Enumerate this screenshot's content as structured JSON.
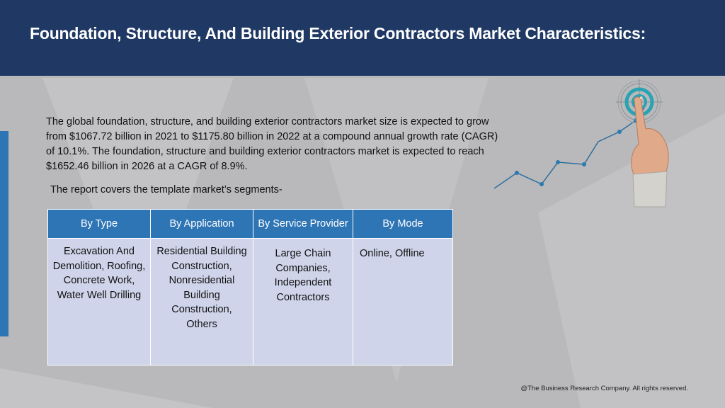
{
  "header": {
    "title": "Foundation, Structure, And Building Exterior Contractors Market Characteristics:"
  },
  "intro": {
    "text": "The global foundation, structure, and building exterior contractors market size is expected to grow from $1067.72 billion in 2021 to $1175.80 billion in 2022 at a compound annual growth rate (CAGR) of 10.1%. The foundation, structure and building exterior contractors market is expected to reach $1652.46 billion in 2026 at a CAGR of 8.9%.",
    "segments_note": "The report covers the template market’s segments-"
  },
  "segments": {
    "headers": [
      "By Type",
      "By Application",
      "By Service Provider",
      "By Mode"
    ],
    "cells": [
      "Excavation And Demolition, Roofing, Concrete Work, Water Well Drilling",
      "Residential Building Construction, Nonresidential Building Construction, Others",
      "Large Chain Companies, Independent Contractors",
      "Online, Offline"
    ]
  },
  "footer": {
    "copyright": "@The Business Research Company. All rights reserved."
  },
  "colors": {
    "header_bg": "#1f3864",
    "accent_blue": "#2e75b6",
    "cell_bg": "#cfd4ea",
    "target_teal": "#29a3b3",
    "page_bg": "#b9b9bb"
  },
  "icons": {
    "illustration": "growth-chart-target-hand-icon"
  }
}
